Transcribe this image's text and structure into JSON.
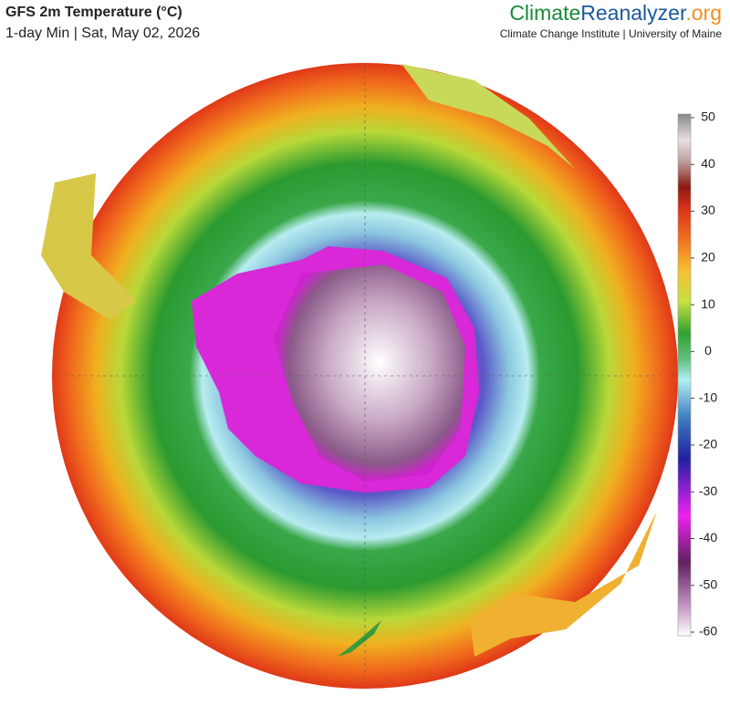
{
  "header": {
    "title": "GFS 2m Temperature (°C)",
    "subtitle": "1-day Min | Sat, May 02, 2026"
  },
  "brand": {
    "part1": "Climate",
    "part2": "Reanalyzer",
    "part3": ".org",
    "tagline": "Climate Change Institute | University of Maine"
  },
  "colorbar": {
    "lim": [
      -60,
      50
    ],
    "ticks": [
      50,
      40,
      30,
      20,
      10,
      0,
      -10,
      -20,
      -30,
      -40,
      -50,
      -60
    ]
  }
}
